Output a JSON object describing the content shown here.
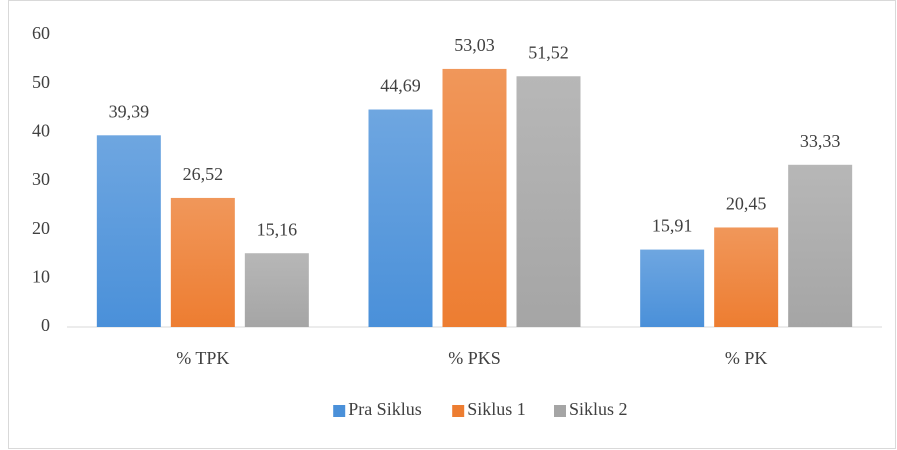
{
  "chart_data": {
    "type": "bar",
    "categories": [
      "% TPK",
      "% PKS",
      "% PK"
    ],
    "series": [
      {
        "name": "Pra Siklus",
        "color": "#4a90d9",
        "values": [
          39.39,
          44.69,
          15.91
        ],
        "value_labels": [
          "39,39",
          "44,69",
          "15,91"
        ]
      },
      {
        "name": "Siklus 1",
        "color": "#ed7d31",
        "values": [
          26.52,
          53.03,
          20.45
        ],
        "value_labels": [
          "26,52",
          "53,03",
          "20,45"
        ]
      },
      {
        "name": "Siklus 2",
        "color": "#a5a5a5",
        "values": [
          15.16,
          51.52,
          33.33
        ],
        "value_labels": [
          "15,16",
          "51,52",
          "33,33"
        ]
      }
    ],
    "ylim": [
      0,
      60
    ],
    "yticks": [
      0,
      10,
      20,
      30,
      40,
      50,
      60
    ],
    "grid": false,
    "legend": "bottom"
  }
}
